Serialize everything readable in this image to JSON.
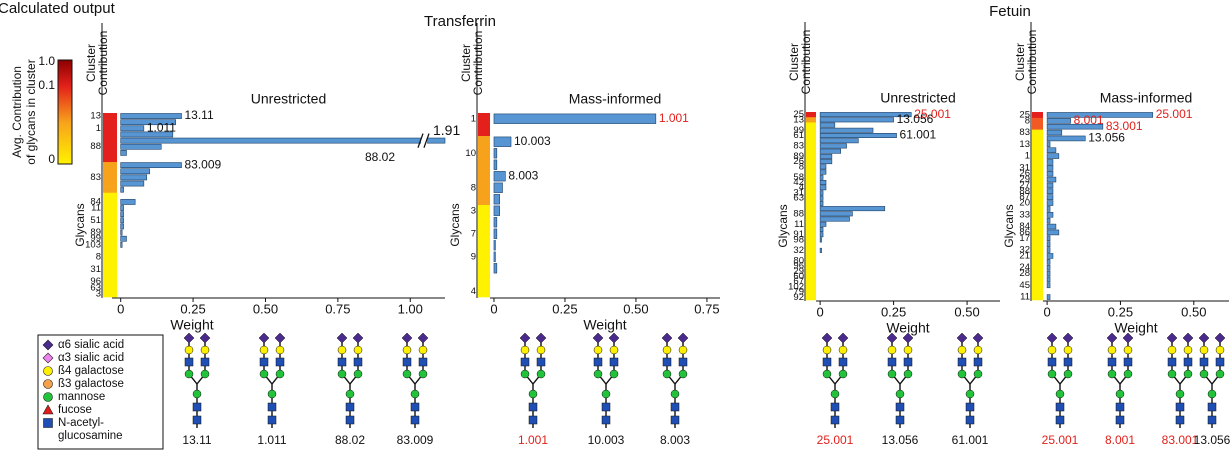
{
  "title": "Calculated output",
  "group_titles": [
    "Transferrin",
    "Fetuin"
  ],
  "colorbar": {
    "title": [
      "Avg. Contribution",
      "of glycans in cluster"
    ],
    "labels": [
      "1.0",
      "0.1",
      "0"
    ]
  },
  "legend": [
    {
      "name": [
        "α6 sialic acid"
      ],
      "color": "#4b2a8e",
      "shape": "diamond"
    },
    {
      "name": [
        "α3 sialic acid"
      ],
      "color": "#ee82ee",
      "shape": "diamond"
    },
    {
      "name": [
        "ß4 galactose"
      ],
      "color": "#ffef00",
      "shape": "circle"
    },
    {
      "name": [
        "ß3 galactose"
      ],
      "color": "#f5a04a",
      "shape": "circle"
    },
    {
      "name": [
        "mannose"
      ],
      "color": "#22c23a",
      "shape": "circle"
    },
    {
      "name": [
        "fucose"
      ],
      "color": "#e01b1b",
      "shape": "triangle"
    },
    {
      "name": [
        "N-acetyl-",
        "glucosamine"
      ],
      "color": "#1f4fb4",
      "shape": "square"
    }
  ],
  "chart_data": [
    {
      "type": "bar",
      "title": "Unrestricted",
      "ylabel_top": [
        "Cluster",
        "Contribution"
      ],
      "ylabel": "Glycans",
      "xlabel": "Weight",
      "color": "#5796d3",
      "categories": [
        "13",
        null,
        "1",
        null,
        null,
        "88",
        null,
        null,
        null,
        null,
        "83",
        null,
        null,
        null,
        "84",
        "11",
        null,
        "51",
        null,
        "89",
        "99",
        "103",
        null,
        "8",
        null,
        "31",
        null,
        "96",
        "63",
        "3"
      ],
      "values": [
        0.21,
        0.19,
        0.08,
        0.18,
        1.91,
        0.14,
        0.02,
        0,
        0.21,
        0.1,
        0.09,
        0.08,
        0.01,
        0,
        0.05,
        0.01,
        0.01,
        0.01,
        0.01,
        0.005,
        0.02,
        0.005,
        0,
        0,
        0,
        0,
        0,
        0,
        0,
        0
      ],
      "value_labels": [
        null,
        null,
        null,
        null,
        "1.91",
        null,
        null,
        null,
        null,
        null,
        null,
        null,
        null,
        null,
        null,
        null,
        null,
        null,
        null,
        null,
        null,
        null,
        null,
        null,
        null,
        null,
        null,
        null,
        null,
        null
      ],
      "bar_labels": [
        "13.11",
        null,
        "1.011",
        null,
        "88.02",
        null,
        null,
        null,
        "83.009",
        null,
        null,
        null,
        null,
        null,
        null,
        null,
        null,
        null,
        null,
        null,
        null,
        null,
        null,
        null,
        null,
        null,
        null,
        null,
        null,
        null
      ],
      "row_colors": [
        "#e3201b",
        "#e3201b",
        "#e3201b",
        "#e3201b",
        "#e3201b",
        "#e3201b",
        "#e3201b",
        "#e3201b",
        "#f7a21b",
        "#f7a21b",
        "#f7a21b",
        "#f7a21b",
        "#f7a21b",
        "#fff200",
        "#fff200",
        "#fff200",
        "#fff200",
        "#fff200",
        "#fff200",
        "#fff200",
        "#fff200",
        "#fff200",
        "#fff200",
        "#fff200",
        "#fff200",
        "#fff200",
        "#fff200",
        "#fff200",
        "#fff200",
        "#fff200"
      ],
      "xlim": [
        -0.03,
        1.12
      ],
      "xticks": [
        0,
        0.25,
        {
          "value": 0.5,
          "label": "0.50"
        },
        0.75,
        {
          "value": 1,
          "label": "1.00"
        }
      ],
      "structures": [
        {
          "label": "13.11",
          "color": "#111111"
        },
        {
          "label": "1.011",
          "color": "#111111"
        },
        {
          "label": "88.02",
          "color": "#111111"
        },
        {
          "label": "83.009",
          "color": "#111111"
        }
      ]
    },
    {
      "type": "bar",
      "title": "Mass-informed",
      "ylabel_top": [
        "Cluster",
        "Contribution"
      ],
      "ylabel": "Glycans",
      "xlabel": "Weight",
      "color": "#5796d3",
      "categories": [
        "1",
        null,
        null,
        "10",
        null,
        null,
        "8",
        null,
        "3",
        null,
        "7",
        null,
        "9",
        null,
        null,
        "4"
      ],
      "values": [
        0.57,
        0,
        0.06,
        0.01,
        0.01,
        0.04,
        0.03,
        0.02,
        0.02,
        0.01,
        0.01,
        0.005,
        0.005,
        0.01,
        0,
        0
      ],
      "bar_labels": [
        "1.001",
        null,
        "10.003",
        null,
        null,
        "8.003",
        null,
        null,
        null,
        null,
        null,
        null,
        null,
        null,
        null,
        null
      ],
      "bar_label_colors": [
        "#e3201b",
        null,
        null,
        null,
        null,
        null,
        null,
        null,
        null,
        null,
        null,
        null,
        null,
        null,
        null,
        null
      ],
      "row_colors": [
        "#e3201b",
        "#e3201b",
        "#f7a21b",
        "#f7a21b",
        "#f7a21b",
        "#f7a21b",
        "#f7a21b",
        "#f7a21b",
        "#fff200",
        "#fff200",
        "#fff200",
        "#fff200",
        "#fff200",
        "#fff200",
        "#fff200",
        "#fff200"
      ],
      "xlim": [
        -0.014,
        0.796
      ],
      "xticks": [
        0,
        0.25,
        {
          "value": 0.5,
          "label": "0.50"
        },
        0.75
      ],
      "structures": [
        {
          "label": "1.001",
          "color": "#e3201b"
        },
        {
          "label": "10.003",
          "color": "#111111"
        },
        {
          "label": "8.003",
          "color": "#111111"
        }
      ]
    },
    {
      "type": "bar",
      "title": "Unrestricted",
      "ylabel_top": [
        "Cluster",
        "Contribution"
      ],
      "ylabel": "Glycans",
      "xlabel": "Weight",
      "color": "#5796d3",
      "categories": [
        "25",
        "13",
        null,
        "99",
        "61",
        null,
        "83",
        null,
        "89",
        "26",
        "8",
        null,
        "58",
        "42",
        "4",
        "31",
        "63",
        null,
        null,
        "88",
        null,
        "11",
        null,
        "91",
        "98",
        null,
        "32",
        null,
        "80",
        "96",
        "29",
        "60",
        "67",
        "102",
        "79",
        "92"
      ],
      "values": [
        0.31,
        0.25,
        0.05,
        0.18,
        0.26,
        0.13,
        0.09,
        0.07,
        0.04,
        0.04,
        0.02,
        0.02,
        0.01,
        0.02,
        0.02,
        0.01,
        0.01,
        0.01,
        0.22,
        0.11,
        0.1,
        0.02,
        0.01,
        0.01,
        0.005,
        0,
        0.005,
        0,
        0,
        0,
        0,
        0,
        0,
        0,
        0,
        0
      ],
      "bar_labels": [
        "25.001",
        "13.056",
        null,
        null,
        "61.001",
        null,
        null,
        null,
        null,
        null,
        null,
        null,
        null,
        null,
        null,
        null,
        null,
        null,
        null,
        null,
        null,
        null,
        null,
        null,
        null,
        null,
        null,
        null,
        null,
        null,
        null,
        null,
        null,
        null,
        null,
        null
      ],
      "bar_label_colors": [
        "#e3201b",
        null,
        null,
        null,
        null,
        null,
        null,
        null,
        null,
        null,
        null,
        null,
        null,
        null,
        null,
        null,
        null,
        null,
        null,
        null,
        null,
        null,
        null,
        null,
        null,
        null,
        null,
        null,
        null,
        null,
        null,
        null,
        null,
        null,
        null,
        null
      ],
      "row_colors": [
        "#e3201b",
        "#f7a21b",
        "#fff200",
        "#fff200",
        "#fff200",
        "#fff200",
        "#fff200",
        "#fff200",
        "#fff200",
        "#fff200",
        "#fff200",
        "#fff200",
        "#fff200",
        "#fff200",
        "#fff200",
        "#fff200",
        "#fff200",
        "#fff200",
        "#fff200",
        "#fff200",
        "#fff200",
        "#fff200",
        "#fff200",
        "#fff200",
        "#fff200",
        "#fff200",
        "#fff200",
        "#fff200",
        "#fff200",
        "#fff200",
        "#fff200",
        "#fff200",
        "#fff200",
        "#fff200",
        "#fff200",
        "#fff200"
      ],
      "xlim": [
        -0.014,
        0.612
      ],
      "xticks": [
        0,
        0.25,
        {
          "value": 0.5,
          "label": "0.50"
        }
      ],
      "structures": [
        {
          "label": "25.001",
          "color": "#e3201b"
        },
        {
          "label": "13.056",
          "color": "#111111"
        },
        {
          "label": "61.001",
          "color": "#111111"
        }
      ]
    },
    {
      "type": "bar",
      "title": "Mass-informed",
      "ylabel_top": [
        "Cluster",
        "Contribution"
      ],
      "ylabel": "Glycans",
      "xlabel": "Weight",
      "color": "#5796d3",
      "categories": [
        "25",
        "8",
        null,
        "83",
        null,
        "13",
        null,
        "1",
        null,
        "31",
        "26",
        "29",
        "27",
        "88",
        "87",
        "20",
        null,
        "33",
        null,
        "84",
        "86",
        "17",
        null,
        "32",
        "21",
        null,
        "24",
        "28",
        null,
        "45",
        null,
        "11"
      ],
      "values": [
        0.36,
        0.08,
        0.19,
        0.05,
        0.13,
        0.01,
        0.03,
        0.04,
        0.02,
        0.02,
        0.02,
        0.03,
        0.02,
        0.02,
        0.02,
        0.02,
        0.01,
        0.02,
        0.01,
        0.03,
        0.04,
        0.01,
        0.01,
        0.01,
        0.02,
        0.01,
        0.01,
        0.01,
        0.01,
        0.01,
        0,
        0.01
      ],
      "bar_labels": [
        "25.001",
        "8.001",
        "83.001",
        null,
        "13.056",
        null,
        null,
        null,
        null,
        null,
        null,
        null,
        null,
        null,
        null,
        null,
        null,
        null,
        null,
        null,
        null,
        null,
        null,
        null,
        null,
        null,
        null,
        null,
        null,
        null,
        null,
        null
      ],
      "bar_label_colors": [
        "#e3201b",
        "#e3201b",
        "#e3201b",
        null,
        null,
        null,
        null,
        null,
        null,
        null,
        null,
        null,
        null,
        null,
        null,
        null,
        null,
        null,
        null,
        null,
        null,
        null,
        null,
        null,
        null,
        null,
        null,
        null,
        null,
        null,
        null,
        null
      ],
      "row_colors": [
        "#e3201b",
        "#f15a22",
        "#f15a22",
        "#fff200",
        "#fff200",
        "#fff200",
        "#fff200",
        "#fff200",
        "#fff200",
        "#fff200",
        "#fff200",
        "#fff200",
        "#fff200",
        "#fff200",
        "#fff200",
        "#fff200",
        "#fff200",
        "#fff200",
        "#fff200",
        "#fff200",
        "#fff200",
        "#fff200",
        "#fff200",
        "#fff200",
        "#fff200",
        "#fff200",
        "#fff200",
        "#fff200",
        "#fff200",
        "#fff200",
        "#fff200",
        "#fff200"
      ],
      "xlim": [
        -0.014,
        0.62
      ],
      "xticks": [
        0,
        0.25,
        {
          "value": 0.5,
          "label": "0.50"
        }
      ],
      "structures": [
        {
          "label": "25.001",
          "color": "#e3201b"
        },
        {
          "label": "8.001",
          "color": "#e3201b"
        },
        {
          "label": "83.001",
          "color": "#e3201b"
        },
        {
          "label": "13.056",
          "color": "#111111"
        }
      ]
    }
  ]
}
